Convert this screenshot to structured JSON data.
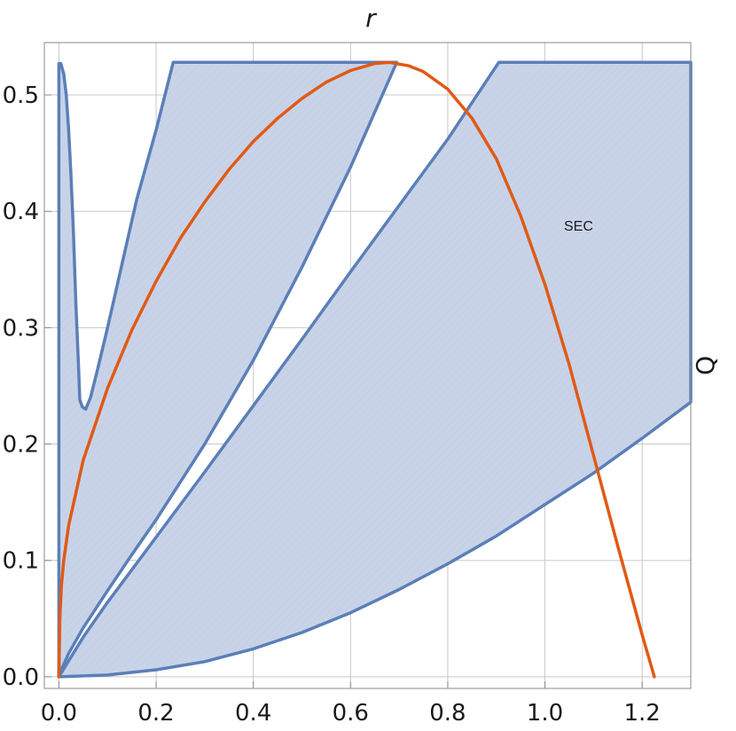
{
  "chart_data": {
    "type": "area",
    "xlabel": "r",
    "ylabel": "Q",
    "xlim": [
      -0.03,
      1.3
    ],
    "ylim": [
      -0.01,
      0.545
    ],
    "x_ticks": [
      "0.0",
      "0.2",
      "0.4",
      "0.6",
      "0.8",
      "1.0",
      "1.2"
    ],
    "x_tick_values": [
      0.0,
      0.2,
      0.4,
      0.6,
      0.8,
      1.0,
      1.2
    ],
    "y_ticks": [
      "0.0",
      "0.1",
      "0.2",
      "0.3",
      "0.4",
      "0.5"
    ],
    "y_tick_values": [
      0.0,
      0.1,
      0.2,
      0.3,
      0.4,
      0.5
    ],
    "grid": true,
    "annotations": [
      {
        "text": "SEC",
        "x": 1.065,
        "y": 0.395
      }
    ],
    "regions": [
      {
        "name": "left",
        "points": [
          [
            0,
            0
          ],
          [
            0,
            0.527
          ],
          [
            0.004,
            0.527
          ],
          [
            0.01,
            0.518
          ],
          [
            0.015,
            0.5
          ],
          [
            0.02,
            0.47
          ],
          [
            0.025,
            0.43
          ],
          [
            0.03,
            0.38
          ],
          [
            0.035,
            0.32
          ],
          [
            0.04,
            0.27
          ],
          [
            0.043,
            0.238
          ],
          [
            0.048,
            0.232
          ],
          [
            0.055,
            0.23
          ],
          [
            0.065,
            0.24
          ],
          [
            0.08,
            0.265
          ],
          [
            0.1,
            0.3
          ],
          [
            0.13,
            0.355
          ],
          [
            0.16,
            0.41
          ],
          [
            0.2,
            0.47
          ],
          [
            0.235,
            0.528
          ],
          [
            0.695,
            0.528
          ],
          [
            0.6,
            0.438
          ],
          [
            0.5,
            0.352
          ],
          [
            0.4,
            0.272
          ],
          [
            0.3,
            0.2
          ],
          [
            0.2,
            0.135
          ],
          [
            0.15,
            0.105
          ],
          [
            0.1,
            0.074
          ],
          [
            0.05,
            0.042
          ],
          [
            0.02,
            0.02
          ],
          [
            0.005,
            0.006
          ],
          [
            0,
            0
          ]
        ]
      },
      {
        "name": "right",
        "points": [
          [
            0,
            0
          ],
          [
            0.05,
            0.034
          ],
          [
            0.1,
            0.064
          ],
          [
            0.2,
            0.12
          ],
          [
            0.3,
            0.176
          ],
          [
            0.4,
            0.233
          ],
          [
            0.5,
            0.29
          ],
          [
            0.6,
            0.348
          ],
          [
            0.7,
            0.405
          ],
          [
            0.8,
            0.462
          ],
          [
            0.905,
            0.528
          ],
          [
            1.3,
            0.528
          ],
          [
            1.3,
            0.236
          ],
          [
            1.2,
            0.205
          ],
          [
            1.1,
            0.175
          ],
          [
            1.0,
            0.148
          ],
          [
            0.9,
            0.121
          ],
          [
            0.8,
            0.097
          ],
          [
            0.7,
            0.075
          ],
          [
            0.6,
            0.055
          ],
          [
            0.5,
            0.038
          ],
          [
            0.4,
            0.024
          ],
          [
            0.3,
            0.013
          ],
          [
            0.2,
            0.006
          ],
          [
            0.1,
            0.0015
          ],
          [
            0,
            0
          ]
        ]
      }
    ],
    "series": [
      {
        "points": [
          [
            0,
            0
          ],
          [
            0.002,
            0.05
          ],
          [
            0.005,
            0.078
          ],
          [
            0.01,
            0.1
          ],
          [
            0.02,
            0.13
          ],
          [
            0.05,
            0.186
          ],
          [
            0.1,
            0.248
          ],
          [
            0.15,
            0.298
          ],
          [
            0.2,
            0.34
          ],
          [
            0.25,
            0.377
          ],
          [
            0.3,
            0.408
          ],
          [
            0.35,
            0.436
          ],
          [
            0.4,
            0.46
          ],
          [
            0.45,
            0.48
          ],
          [
            0.5,
            0.497
          ],
          [
            0.55,
            0.511
          ],
          [
            0.6,
            0.521
          ],
          [
            0.65,
            0.527
          ],
          [
            0.68,
            0.528
          ],
          [
            0.72,
            0.525
          ],
          [
            0.75,
            0.52
          ],
          [
            0.8,
            0.505
          ],
          [
            0.85,
            0.48
          ],
          [
            0.9,
            0.445
          ],
          [
            0.95,
            0.396
          ],
          [
            1.0,
            0.337
          ],
          [
            1.05,
            0.268
          ],
          [
            1.1,
            0.19
          ],
          [
            1.15,
            0.112
          ],
          [
            1.2,
            0.036
          ],
          [
            1.225,
            0.0
          ]
        ]
      }
    ],
    "colors": {
      "fill": "#c8d3e8",
      "edge": "#5b7fb8",
      "curve": "#e05a14",
      "grid": "#c8c8c8",
      "frame": "#8a8a8a"
    }
  }
}
